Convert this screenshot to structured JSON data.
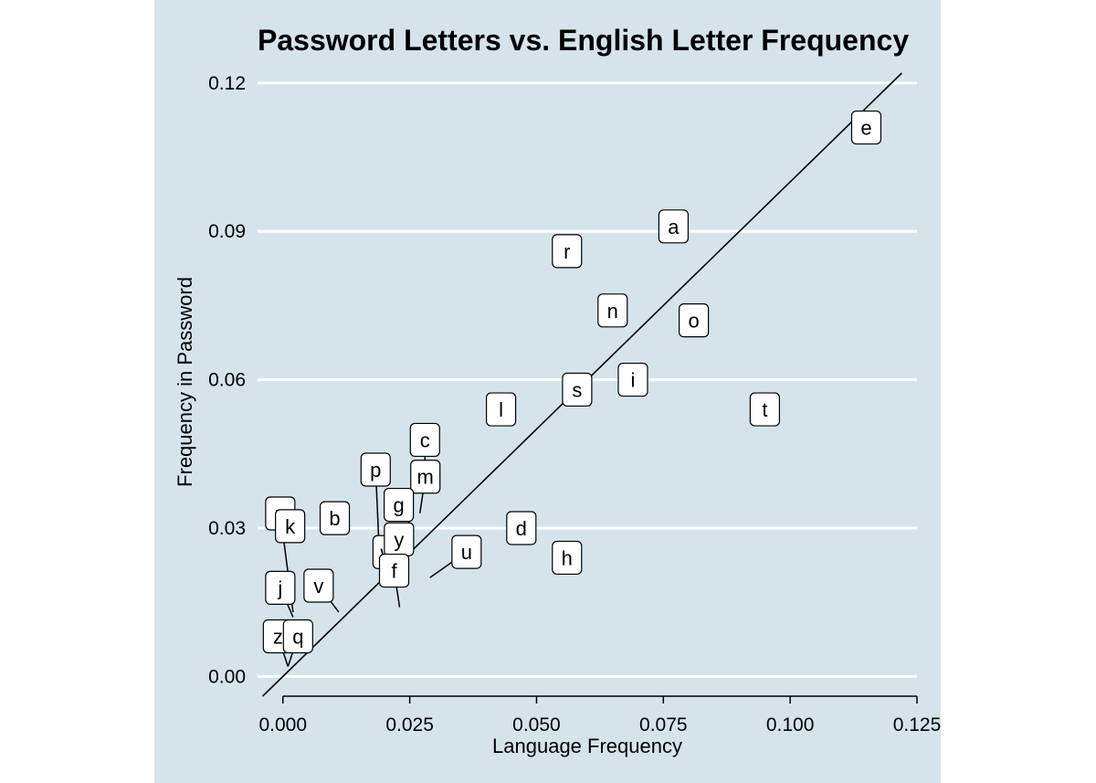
{
  "chart_data": {
    "type": "scatter",
    "title": "Password Letters vs. English Letter Frequency",
    "xlabel": "Language Frequency",
    "ylabel": "Frequency in Password",
    "xlim": [
      -0.005,
      0.125
    ],
    "ylim": [
      -0.004,
      0.122
    ],
    "x_ticks": [
      "0.000",
      "0.025",
      "0.050",
      "0.075",
      "0.100",
      "0.125"
    ],
    "x_tick_values": [
      0,
      0.025,
      0.05,
      0.075,
      0.1,
      0.125
    ],
    "y_ticks": [
      "0.00",
      "0.03",
      "0.06",
      "0.09",
      "0.12"
    ],
    "y_tick_values": [
      0,
      0.03,
      0.06,
      0.09,
      0.12
    ],
    "grid": "horizontal",
    "reference_line": "y = x",
    "points": [
      {
        "label": "e",
        "x": 0.115,
        "y": 0.111
      },
      {
        "label": "a",
        "x": 0.077,
        "y": 0.091
      },
      {
        "label": "r",
        "x": 0.056,
        "y": 0.086
      },
      {
        "label": "n",
        "x": 0.065,
        "y": 0.074
      },
      {
        "label": "o",
        "x": 0.081,
        "y": 0.072
      },
      {
        "label": "i",
        "x": 0.069,
        "y": 0.06
      },
      {
        "label": "s",
        "x": 0.058,
        "y": 0.058
      },
      {
        "label": "t",
        "x": 0.095,
        "y": 0.054
      },
      {
        "label": "l",
        "x": 0.043,
        "y": 0.054
      },
      {
        "label": "c",
        "x": 0.028,
        "y": 0.041
      },
      {
        "label": "p",
        "x": 0.019,
        "y": 0.025
      },
      {
        "label": "m",
        "x": 0.027,
        "y": 0.033
      },
      {
        "label": "d",
        "x": 0.047,
        "y": 0.03
      },
      {
        "label": "g",
        "x": 0.025,
        "y": 0.031
      },
      {
        "label": "b",
        "x": 0.014,
        "y": 0.032
      },
      {
        "label": "u",
        "x": 0.029,
        "y": 0.02
      },
      {
        "label": "h",
        "x": 0.056,
        "y": 0.024
      },
      {
        "label": "x",
        "x": 0.002,
        "y": 0.013
      },
      {
        "label": "k",
        "x": 0.007,
        "y": 0.023
      },
      {
        "label": "w",
        "x": 0.021,
        "y": 0.022
      },
      {
        "label": "y",
        "x": 0.02,
        "y": 0.022
      },
      {
        "label": "j",
        "x": 0.002,
        "y": 0.012
      },
      {
        "label": "v",
        "x": 0.011,
        "y": 0.013
      },
      {
        "label": "f",
        "x": 0.023,
        "y": 0.014
      },
      {
        "label": "z",
        "x": 0.001,
        "y": 0.002
      },
      {
        "label": "q",
        "x": 0.001,
        "y": 0.002
      }
    ]
  }
}
